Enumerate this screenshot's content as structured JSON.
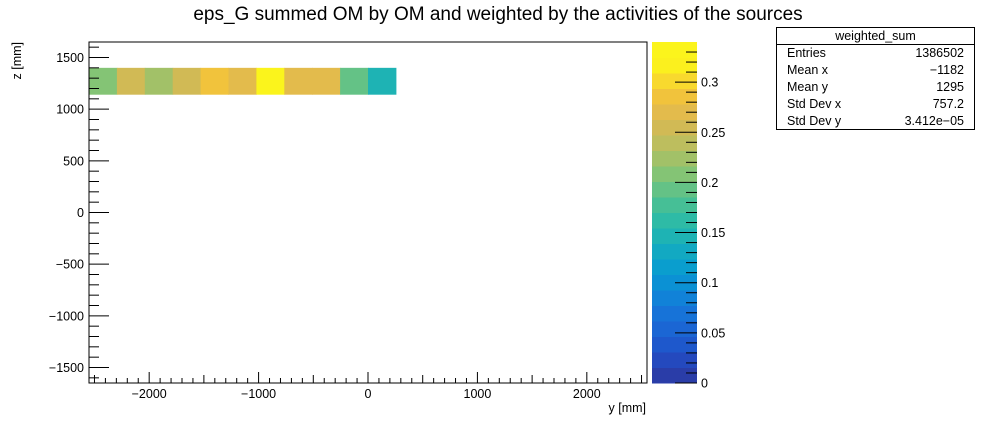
{
  "chart_data": {
    "type": "heatmap",
    "title": "eps_G summed OM by OM and weighted by the activities of the sources",
    "xlabel": "y [mm]",
    "ylabel": "z [mm]",
    "xlim": [
      -2550,
      2550
    ],
    "ylim": [
      -1650,
      1650
    ],
    "x_ticks": [
      {
        "value": -2000,
        "label": "−2000"
      },
      {
        "value": -1000,
        "label": "−1000"
      },
      {
        "value": 0,
        "label": "0"
      },
      {
        "value": 1000,
        "label": "1000"
      },
      {
        "value": 2000,
        "label": "2000"
      }
    ],
    "y_ticks": [
      {
        "value": 1500,
        "label": "1500"
      },
      {
        "value": 1000,
        "label": "1000"
      },
      {
        "value": 500,
        "label": "500"
      },
      {
        "value": 0,
        "label": "0"
      },
      {
        "value": -500,
        "label": "−500"
      },
      {
        "value": -1000,
        "label": "−1000"
      },
      {
        "value": -1500,
        "label": "−1500"
      }
    ],
    "z_range": [
      0,
      0.34
    ],
    "z_ticks": [
      {
        "value": 0,
        "label": "0"
      },
      {
        "value": 0.05,
        "label": "0.05"
      },
      {
        "value": 0.1,
        "label": "0.1"
      },
      {
        "value": 0.15,
        "label": "0.15"
      },
      {
        "value": 0.2,
        "label": "0.2"
      },
      {
        "value": 0.25,
        "label": "0.25"
      },
      {
        "value": 0.3,
        "label": "0.3"
      }
    ],
    "cells": [
      {
        "x0": -2550,
        "x1": -2295,
        "y0": 1140,
        "y1": 1400,
        "z": 0.21
      },
      {
        "x0": -2295,
        "x1": -2040,
        "y0": 1140,
        "y1": 1400,
        "z": 0.26
      },
      {
        "x0": -2040,
        "x1": -1785,
        "y0": 1140,
        "y1": 1400,
        "z": 0.22
      },
      {
        "x0": -1785,
        "x1": -1530,
        "y0": 1140,
        "y1": 1400,
        "z": 0.25
      },
      {
        "x0": -1530,
        "x1": -1275,
        "y0": 1140,
        "y1": 1400,
        "z": 0.29
      },
      {
        "x0": -1275,
        "x1": -1020,
        "y0": 1140,
        "y1": 1400,
        "z": 0.27
      },
      {
        "x0": -1020,
        "x1": -765,
        "y0": 1140,
        "y1": 1400,
        "z": 0.34
      },
      {
        "x0": -765,
        "x1": -510,
        "y0": 1140,
        "y1": 1400,
        "z": 0.27
      },
      {
        "x0": -510,
        "x1": -255,
        "y0": 1140,
        "y1": 1400,
        "z": 0.27
      },
      {
        "x0": -255,
        "x1": 0,
        "y0": 1140,
        "y1": 1400,
        "z": 0.2
      },
      {
        "x0": 0,
        "x1": 255,
        "y0": 1140,
        "y1": 1400,
        "z": 0.15
      }
    ],
    "palette": [
      "#2a3da8",
      "#2449be",
      "#1e58cc",
      "#1b66d4",
      "#1773d8",
      "#1182d8",
      "#0b91d4",
      "#0a9ece",
      "#12a9c2",
      "#1eb3b4",
      "#2ebba6",
      "#46bf96",
      "#64c286",
      "#84c475",
      "#a2c168",
      "#bdbe5e",
      "#d1ba55",
      "#e3bb4c",
      "#f1c33c",
      "#f8d92e",
      "#fbf01e",
      "#fbf41c"
    ],
    "legend": "right"
  },
  "stats": {
    "name": "weighted_sum",
    "rows": [
      {
        "key": "Entries",
        "value": "1386502"
      },
      {
        "key": "Mean x",
        "value": "−1182"
      },
      {
        "key": "Mean y",
        "value": "1295"
      },
      {
        "key": "Std Dev x",
        "value": "757.2"
      },
      {
        "key": "Std Dev y",
        "value": "3.412e−05"
      }
    ]
  }
}
